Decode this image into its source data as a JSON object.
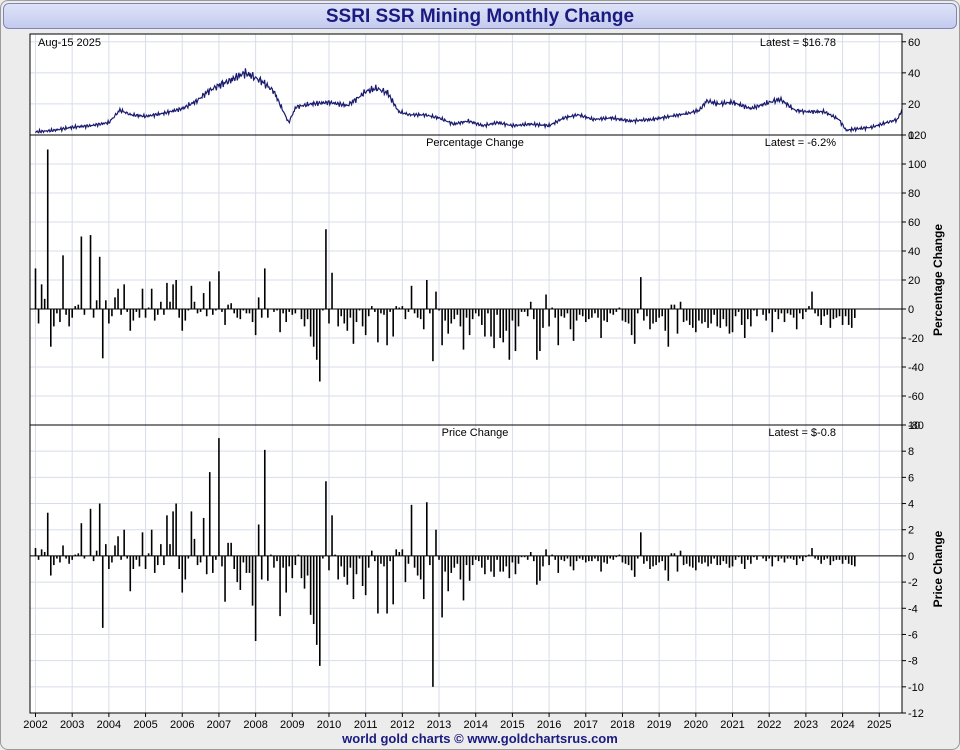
{
  "title": "SSRI SSR Mining Monthly Change",
  "footer": "world gold charts © www.goldchartsrus.com",
  "colors": {
    "price_line": "#1a1a6e",
    "bars": "#000000",
    "grid": "#d8dde8",
    "title_text": "#1a1a80",
    "plot_bg": "#ffffff"
  },
  "chart_data": [
    {
      "type": "line",
      "date_label": "Aug-15  2025",
      "latest_label": "Latest = $16.78",
      "ylim": [
        0,
        65
      ],
      "y_ticks": [
        0,
        20,
        40,
        60
      ],
      "x_ticks": [
        "2002",
        "2003",
        "2004",
        "2005",
        "2006",
        "2007",
        "2008",
        "2009",
        "2010",
        "2011",
        "2012",
        "2013",
        "2014",
        "2015",
        "2016",
        "2017",
        "2018",
        "2019",
        "2020",
        "2021",
        "2022",
        "2023",
        "2024",
        "2025"
      ],
      "x_range": [
        2001.85,
        2025.62
      ],
      "grid": true,
      "series": [
        {
          "x": [
            2002.0,
            2002.5,
            2003.0,
            2003.5,
            2004.0,
            2004.3,
            2004.6,
            2005.0,
            2005.5,
            2006.0,
            2006.4,
            2006.7,
            2007.0,
            2007.3,
            2007.7,
            2007.9,
            2008.2,
            2008.5,
            2008.7,
            2008.9,
            2009.1,
            2009.5,
            2010.0,
            2010.5,
            2010.8,
            2011.0,
            2011.3,
            2011.6,
            2011.9,
            2012.2,
            2012.6,
            2013.0,
            2013.4,
            2013.8,
            2014.2,
            2014.6,
            2015.0,
            2015.5,
            2016.0,
            2016.4,
            2016.8,
            2017.2,
            2017.7,
            2018.2,
            2018.8,
            2019.3,
            2019.8,
            2020.1,
            2020.3,
            2020.6,
            2021.0,
            2021.5,
            2022.0,
            2022.3,
            2022.7,
            2023.0,
            2023.5,
            2023.9,
            2024.1,
            2024.4,
            2024.8,
            2025.2,
            2025.5,
            2025.62
          ],
          "y": [
            2,
            3,
            5,
            6,
            8,
            16,
            13,
            12,
            14,
            17,
            22,
            28,
            32,
            35,
            40,
            38,
            34,
            28,
            18,
            8,
            18,
            20,
            21,
            19,
            24,
            28,
            30,
            27,
            15,
            13,
            13,
            11,
            7,
            9,
            6,
            8,
            6,
            7,
            6,
            11,
            13,
            10,
            11,
            9,
            10,
            12,
            14,
            16,
            22,
            20,
            21,
            17,
            21,
            23,
            16,
            15,
            15,
            10,
            3,
            4,
            5,
            8,
            10,
            16.78
          ]
        }
      ]
    },
    {
      "type": "bar",
      "label": "Percentage Change",
      "latest_label": "Latest = -6.2%",
      "ylabel": "Percentage Change",
      "ylim": [
        -80,
        120
      ],
      "y_ticks": [
        -80,
        -60,
        -40,
        -20,
        0,
        20,
        40,
        60,
        80,
        100,
        120
      ],
      "grid": true,
      "months_start": 2002.0,
      "values": [
        28,
        -10,
        17,
        7,
        110,
        -26,
        -12,
        -3,
        -9,
        37,
        -4,
        -12,
        -6,
        2,
        3,
        50,
        -4,
        0,
        51,
        -6,
        6,
        36,
        -34,
        6,
        -10,
        -5,
        8,
        14,
        -4,
        17,
        -2,
        -15,
        -8,
        -2,
        -6,
        14,
        -6,
        1,
        14,
        -8,
        -4,
        5,
        -4,
        18,
        5,
        17,
        20,
        -6,
        -15,
        -8,
        -1,
        16,
        5,
        -3,
        -2,
        11,
        -5,
        19,
        -4,
        -1,
        26,
        -2,
        -11,
        3,
        4,
        -3,
        -6,
        -7,
        -1,
        -3,
        -3,
        -9,
        -18,
        8,
        -6,
        28,
        -6,
        0,
        -2,
        -1,
        -16,
        -3,
        -9,
        -2,
        -4,
        -3,
        0,
        -7,
        -12,
        -7,
        -19,
        -26,
        -35,
        -50,
        -1,
        55,
        -10,
        25,
        0,
        -12,
        -5,
        -10,
        -15,
        -6,
        -24,
        -9,
        -1,
        -12,
        -18,
        -5,
        2,
        -2,
        -23,
        -3,
        -4,
        -25,
        -2,
        -19,
        2,
        1,
        2,
        -7,
        -2,
        16,
        -3,
        -6,
        -7,
        -14,
        20,
        -3,
        -36,
        12,
        -1,
        -25,
        -8,
        -17,
        -10,
        -7,
        -4,
        -12,
        -28,
        -6,
        -18,
        -7,
        -3,
        -5,
        -11,
        -19,
        -3,
        -19,
        -27,
        -4,
        -20,
        -23,
        -15,
        -35,
        -8,
        -29,
        -12,
        -2,
        -2,
        -5,
        5,
        -7,
        -35,
        -29,
        -13,
        10,
        -12,
        1,
        -6,
        -25,
        -5,
        -6,
        -3,
        -14,
        -22,
        -8,
        -4,
        -5,
        -9,
        -7,
        -6,
        -3,
        -6,
        -20,
        -8,
        -9,
        -3,
        -4,
        -2,
        1,
        -8,
        -9,
        -10,
        -18,
        -24,
        -3,
        22,
        -8,
        -5,
        -14,
        -10,
        -9,
        -6,
        -5,
        -15,
        -26,
        3,
        3,
        -17,
        5,
        -9,
        -8,
        -11,
        -13,
        -16,
        -8,
        -10,
        -9,
        -13,
        -10,
        -4,
        -12,
        -13,
        -7,
        -12,
        -17,
        -16,
        -5,
        -2,
        -11,
        -20,
        -7,
        -12,
        -1,
        -5,
        0,
        -4,
        -8,
        -3,
        -16,
        -2,
        -7,
        -3,
        -9,
        -3,
        -4,
        -6,
        -14,
        -3,
        -7,
        -2,
        2,
        12,
        -3,
        -5,
        -11,
        -5,
        -4,
        -13,
        -7,
        -6,
        -5,
        -11,
        -5,
        -11,
        -13,
        -6.2
      ]
    },
    {
      "type": "bar",
      "label": "Price Change",
      "latest_label": "Latest = $-0.8",
      "ylabel": "Price Change",
      "ylim": [
        -12,
        10
      ],
      "y_ticks": [
        -12,
        -10,
        -8,
        -6,
        -4,
        -2,
        0,
        2,
        4,
        6,
        8,
        10
      ],
      "grid": true,
      "months_start": 2002.0,
      "values": [
        0.6,
        -0.3,
        0.5,
        0.3,
        3.3,
        -1.5,
        -0.7,
        -0.2,
        -0.5,
        0.8,
        -0.2,
        -0.6,
        -0.3,
        0.1,
        0.2,
        2.5,
        -0.2,
        0.0,
        3.6,
        -0.4,
        0.4,
        4.0,
        -5.5,
        0.9,
        -1.0,
        -0.5,
        0.8,
        1.5,
        -0.3,
        2.0,
        -0.2,
        -2.7,
        -1.0,
        -0.3,
        -0.8,
        1.8,
        -1.0,
        0.2,
        2.0,
        -1.3,
        -0.7,
        0.9,
        -0.7,
        3.1,
        0.9,
        3.4,
        4.0,
        -1.0,
        -2.8,
        -1.8,
        -0.2,
        3.4,
        1.3,
        -0.7,
        -0.5,
        2.9,
        -1.4,
        6.4,
        -1.3,
        -0.3,
        9.0,
        -0.8,
        -3.5,
        1.0,
        1.0,
        -1.0,
        -2.0,
        -2.6,
        -0.5,
        -1.3,
        -1.3,
        -3.8,
        -6.5,
        2.4,
        -1.8,
        8.1,
        -1.9,
        0.1,
        -0.9,
        -0.4,
        -4.6,
        -0.9,
        -2.8,
        -0.8,
        -1.7,
        -0.7,
        0.1,
        -1.7,
        -2.5,
        -1.5,
        -4.5,
        -5.2,
        -6.8,
        -8.4,
        -0.2,
        5.7,
        -1.1,
        3.1,
        0.1,
        -1.8,
        -0.8,
        -1.6,
        -2.2,
        -0.9,
        -3.3,
        -1.4,
        -0.2,
        -2.3,
        -3.0,
        -0.9,
        0.4,
        -0.4,
        -4.4,
        -0.6,
        -0.8,
        -4.4,
        -0.4,
        -3.7,
        0.5,
        0.3,
        0.5,
        -2.0,
        -0.6,
        3.9,
        -0.9,
        -1.5,
        -1.8,
        -3.3,
        4.1,
        -0.7,
        -10.0,
        2.0,
        -0.3,
        -4.7,
        -1.2,
        -2.7,
        -1.3,
        -0.9,
        -0.6,
        -1.8,
        -3.4,
        -0.7,
        -1.9,
        -0.7,
        -0.3,
        -0.4,
        -0.9,
        -1.4,
        -0.3,
        -1.2,
        -1.6,
        -0.3,
        -1.2,
        -1.2,
        -0.8,
        -1.7,
        -0.5,
        -1.4,
        -0.6,
        -0.1,
        -0.1,
        -0.3,
        0.3,
        -0.4,
        -2.2,
        -1.9,
        -0.8,
        0.5,
        -0.7,
        0.1,
        -0.3,
        -1.3,
        -0.3,
        -0.4,
        -0.2,
        -0.8,
        -1.1,
        -0.4,
        -0.2,
        -0.3,
        -0.5,
        -0.4,
        -0.4,
        -0.2,
        -0.4,
        -1.2,
        -0.5,
        -0.6,
        -0.2,
        -0.3,
        -0.1,
        0.1,
        -0.5,
        -0.6,
        -0.7,
        -1.1,
        -1.6,
        -0.2,
        1.8,
        -0.6,
        -0.4,
        -1.0,
        -0.8,
        -0.7,
        -0.5,
        -0.4,
        -1.1,
        -1.9,
        0.2,
        0.2,
        -1.2,
        0.4,
        -0.7,
        -0.6,
        -0.8,
        -0.9,
        -1.1,
        -0.5,
        -0.6,
        -0.5,
        -0.8,
        -0.6,
        -0.2,
        -0.7,
        -0.7,
        -0.4,
        -0.6,
        -0.9,
        -0.8,
        -0.3,
        -0.1,
        -0.6,
        -1.0,
        -0.3,
        -0.6,
        -0.1,
        -0.3,
        0.0,
        -0.2,
        -0.4,
        -0.2,
        -0.8,
        -0.1,
        -0.4,
        -0.2,
        -0.5,
        -0.2,
        -0.2,
        -0.3,
        -0.7,
        -0.2,
        -0.4,
        -0.1,
        0.1,
        0.6,
        -0.2,
        -0.3,
        -0.6,
        -0.3,
        -0.2,
        -0.7,
        -0.4,
        -0.3,
        -0.3,
        -0.6,
        -0.3,
        -0.6,
        -0.7,
        -0.8
      ]
    }
  ]
}
